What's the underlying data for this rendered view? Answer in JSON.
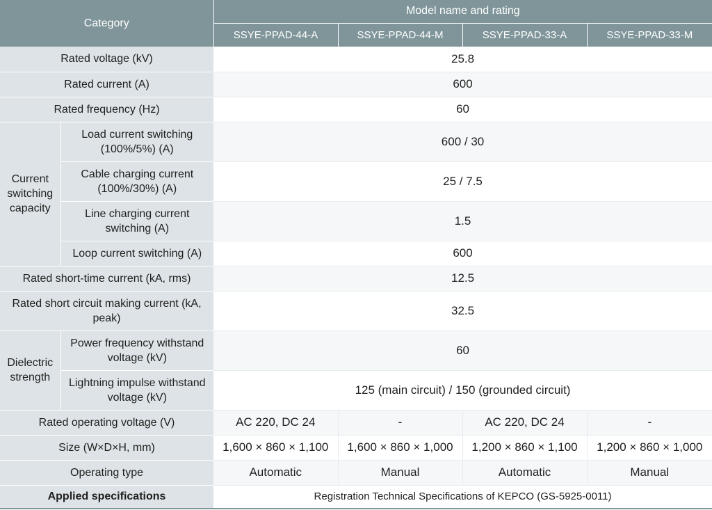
{
  "header": {
    "category": "Category",
    "model_group": "Model name and rating",
    "models": [
      "SSYE-PPAD-44-A",
      "SSYE-PPAD-44-M",
      "SSYE-PPAD-33-A",
      "SSYE-PPAD-33-M"
    ]
  },
  "rows": {
    "rated_voltage": {
      "label": "Rated voltage (kV)",
      "value": "25.8"
    },
    "rated_current": {
      "label": "Rated current (A)",
      "value": "600"
    },
    "rated_frequency": {
      "label": "Rated frequency (Hz)",
      "value": "60"
    },
    "switching": {
      "group": "Current switching capacity",
      "load": {
        "label": "Load current switching (100%/5%) (A)",
        "value": "600 / 30"
      },
      "cable": {
        "label": "Cable charging current (100%/30%) (A)",
        "value": "25 / 7.5"
      },
      "line": {
        "label": "Line charging current switching (A)",
        "value": "1.5"
      },
      "loop": {
        "label": "Loop current switching (A)",
        "value": "600"
      }
    },
    "short_time": {
      "label": "Rated short-time current (kA, rms)",
      "value": "12.5"
    },
    "making": {
      "label": "Rated short circuit making current (kA, peak)",
      "value": "32.5"
    },
    "dielectric": {
      "group": "Dielectric strength",
      "power": {
        "label": "Power frequency withstand voltage (kV)",
        "value": "60"
      },
      "impulse": {
        "label": "Lightning impulse withstand voltage (kV)",
        "value": "125 (main circuit) / 150 (grounded circuit)"
      }
    },
    "operating_voltage": {
      "label": "Rated operating voltage (V)",
      "values": [
        "AC 220, DC 24",
        "-",
        "AC 220, DC 24",
        "-"
      ]
    },
    "size": {
      "label": "Size (W×D×H, mm)",
      "values": [
        "1,600 × 860 × 1,100",
        "1,600 × 860 × 1,000",
        "1,200 × 860 × 1,100",
        "1,200 × 860 × 1,000"
      ]
    },
    "operating_type": {
      "label": "Operating type",
      "values": [
        "Automatic",
        "Manual",
        "Automatic",
        "Manual"
      ]
    },
    "applied_specs": {
      "label": "Applied specifications",
      "value": "Registration Technical Specifications of KEPCO (GS-5925-0011)"
    }
  },
  "colors": {
    "header_bg": "#7f9599",
    "label_bg": "#dde3e6",
    "stripe_bg": "#f5f7f8"
  }
}
